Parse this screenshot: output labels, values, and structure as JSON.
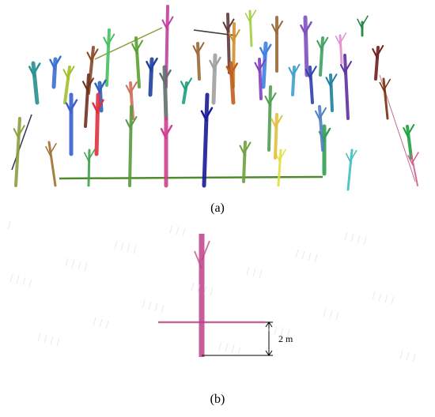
{
  "figure": {
    "panels": [
      {
        "label": "(a)"
      },
      {
        "label": "(b)",
        "scale_bar": "2 m"
      }
    ]
  }
}
